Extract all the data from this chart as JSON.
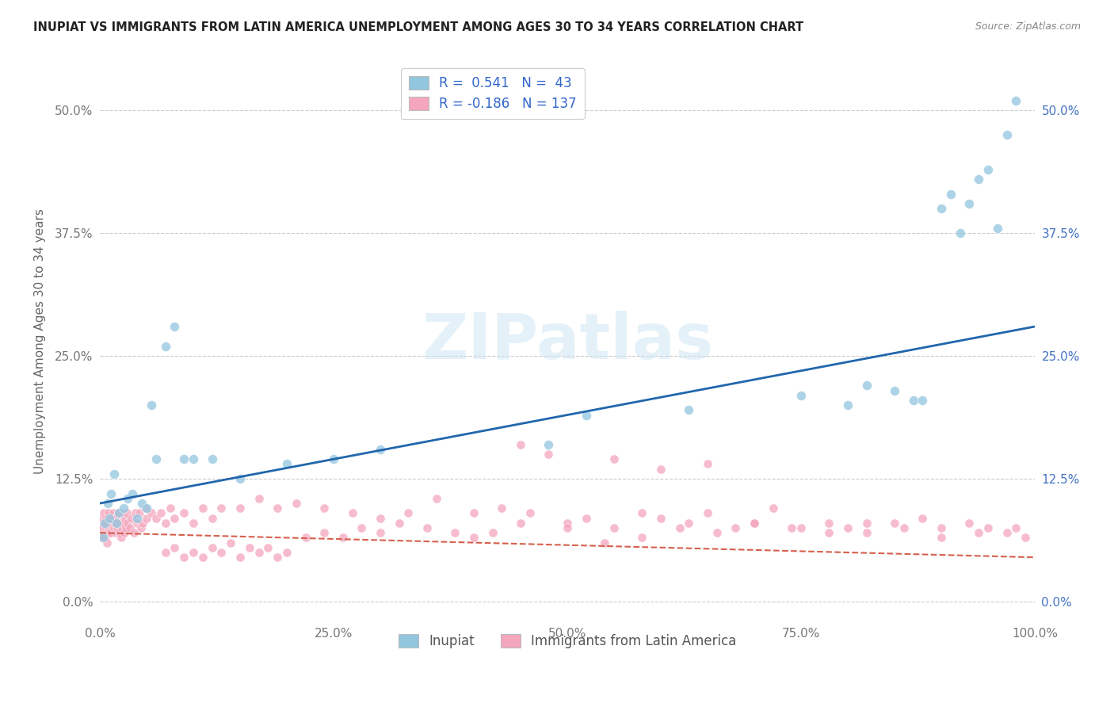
{
  "title": "INUPIAT VS IMMIGRANTS FROM LATIN AMERICA UNEMPLOYMENT AMONG AGES 30 TO 34 YEARS CORRELATION CHART",
  "source": "Source: ZipAtlas.com",
  "ylabel": "Unemployment Among Ages 30 to 34 years",
  "watermark": "ZIPatlas",
  "legend_label1": "Inupiat",
  "legend_label2": "Immigrants from Latin America",
  "r1": 0.541,
  "n1": 43,
  "r2": -0.186,
  "n2": 137,
  "color1": "#92c5de",
  "color2": "#f4a6bd",
  "line_color1": "#2166ac",
  "line_color2": "#d6604d",
  "background": "#ffffff",
  "grid_color": "#cccccc",
  "xlim": [
    0,
    100
  ],
  "ylim": [
    -2,
    55
  ],
  "yticks": [
    0,
    12.5,
    25.0,
    37.5,
    50.0
  ],
  "xticks": [
    0,
    25,
    50,
    75,
    100
  ],
  "blue_line_x0": 0,
  "blue_line_y0": 10.0,
  "blue_line_x1": 100,
  "blue_line_y1": 28.0,
  "pink_line_x0": 0,
  "pink_line_y0": 7.0,
  "pink_line_x1": 100,
  "pink_line_y1": 4.5,
  "inupiat_x": [
    0.3,
    0.5,
    0.8,
    1.0,
    1.2,
    1.5,
    1.8,
    2.0,
    2.5,
    3.0,
    3.5,
    4.0,
    4.5,
    5.0,
    5.5,
    6.0,
    7.0,
    8.0,
    9.0,
    10.0,
    12.0,
    15.0,
    20.0,
    25.0,
    30.0,
    48.0,
    52.0,
    63.0,
    75.0,
    80.0,
    82.0,
    85.0,
    87.0,
    88.0,
    90.0,
    91.0,
    92.0,
    93.0,
    94.0,
    95.0,
    96.0,
    97.0,
    98.0
  ],
  "inupiat_y": [
    6.5,
    8.0,
    10.0,
    8.5,
    11.0,
    13.0,
    8.0,
    9.0,
    9.5,
    10.5,
    11.0,
    8.5,
    10.0,
    9.5,
    20.0,
    14.5,
    26.0,
    28.0,
    14.5,
    14.5,
    14.5,
    12.5,
    14.0,
    14.5,
    15.5,
    16.0,
    19.0,
    19.5,
    21.0,
    20.0,
    22.0,
    21.5,
    20.5,
    20.5,
    40.0,
    41.5,
    37.5,
    40.5,
    43.0,
    44.0,
    38.0,
    47.5,
    51.0
  ],
  "latin_x": [
    0.1,
    0.15,
    0.2,
    0.25,
    0.3,
    0.35,
    0.4,
    0.45,
    0.5,
    0.55,
    0.6,
    0.65,
    0.7,
    0.75,
    0.8,
    0.85,
    0.9,
    0.95,
    1.0,
    1.1,
    1.2,
    1.3,
    1.4,
    1.5,
    1.6,
    1.7,
    1.8,
    1.9,
    2.0,
    2.1,
    2.2,
    2.3,
    2.4,
    2.5,
    2.6,
    2.7,
    2.8,
    2.9,
    3.0,
    3.2,
    3.4,
    3.6,
    3.8,
    4.0,
    4.2,
    4.4,
    4.6,
    4.8,
    5.0,
    5.5,
    6.0,
    6.5,
    7.0,
    7.5,
    8.0,
    9.0,
    10.0,
    11.0,
    12.0,
    13.0,
    15.0,
    17.0,
    19.0,
    21.0,
    24.0,
    27.0,
    30.0,
    33.0,
    36.0,
    40.0,
    43.0,
    46.0,
    50.0,
    52.0,
    55.0,
    58.0,
    60.0,
    63.0,
    65.0,
    68.0,
    70.0,
    72.0,
    75.0,
    78.0,
    80.0,
    82.0,
    85.0,
    88.0,
    90.0,
    93.0,
    95.0,
    97.0,
    99.0,
    45.0,
    48.0,
    55.0,
    60.0,
    65.0,
    7.0,
    8.0,
    9.0,
    10.0,
    11.0,
    12.0,
    13.0,
    14.0,
    15.0,
    16.0,
    17.0,
    18.0,
    19.0,
    20.0,
    22.0,
    24.0,
    26.0,
    28.0,
    30.0,
    32.0,
    35.0,
    38.0,
    40.0,
    42.0,
    45.0,
    50.0,
    54.0,
    58.0,
    62.0,
    66.0,
    70.0,
    74.0,
    78.0,
    82.0,
    86.0,
    90.0,
    94.0,
    98.0
  ],
  "latin_y": [
    7.5,
    6.5,
    8.0,
    7.0,
    8.5,
    7.5,
    9.0,
    6.5,
    7.0,
    8.0,
    6.5,
    7.5,
    8.5,
    6.0,
    7.0,
    8.0,
    9.0,
    7.5,
    7.0,
    8.5,
    7.0,
    8.0,
    9.0,
    7.5,
    8.0,
    7.0,
    8.5,
    7.5,
    9.0,
    7.0,
    8.0,
    6.5,
    7.5,
    8.0,
    7.0,
    8.5,
    7.5,
    9.0,
    8.0,
    7.5,
    8.5,
    7.0,
    9.0,
    8.0,
    9.0,
    7.5,
    8.0,
    9.5,
    8.5,
    9.0,
    8.5,
    9.0,
    8.0,
    9.5,
    8.5,
    9.0,
    8.0,
    9.5,
    8.5,
    9.5,
    9.5,
    10.5,
    9.5,
    10.0,
    9.5,
    9.0,
    8.5,
    9.0,
    10.5,
    9.0,
    9.5,
    9.0,
    8.0,
    8.5,
    7.5,
    9.0,
    8.5,
    8.0,
    9.0,
    7.5,
    8.0,
    9.5,
    7.5,
    8.0,
    7.5,
    7.0,
    8.0,
    8.5,
    7.5,
    8.0,
    7.5,
    7.0,
    6.5,
    16.0,
    15.0,
    14.5,
    13.5,
    14.0,
    5.0,
    5.5,
    4.5,
    5.0,
    4.5,
    5.5,
    5.0,
    6.0,
    4.5,
    5.5,
    5.0,
    5.5,
    4.5,
    5.0,
    6.5,
    7.0,
    6.5,
    7.5,
    7.0,
    8.0,
    7.5,
    7.0,
    6.5,
    7.0,
    8.0,
    7.5,
    6.0,
    6.5,
    7.5,
    7.0,
    8.0,
    7.5,
    7.0,
    8.0,
    7.5,
    6.5,
    7.0,
    7.5
  ]
}
